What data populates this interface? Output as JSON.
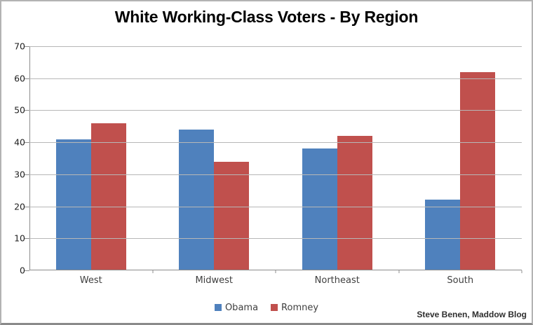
{
  "header": {
    "title": "White Working-Class Voters - By Region"
  },
  "chart_data": {
    "type": "bar",
    "title": "White Working-Class Voters - By Region",
    "categories": [
      "West",
      "Midwest",
      "Northeast",
      "South"
    ],
    "series": [
      {
        "name": "Obama",
        "color": "#4F81BD",
        "values": [
          41,
          44,
          38,
          22
        ]
      },
      {
        "name": "Romney",
        "color": "#C0504D",
        "values": [
          46,
          34,
          42,
          62
        ]
      }
    ],
    "xlabel": "",
    "ylabel": "",
    "ylim": [
      0,
      70
    ],
    "ytick_step": 10,
    "grid": "horizontal",
    "legend_position": "bottom"
  },
  "footer": {
    "attribution": "Steve Benen, Maddow Blog"
  },
  "colors": {
    "obama_blue": "#4F81BD",
    "romney_red": "#C0504D",
    "gridline": "#b7b7b7",
    "axis": "#8c8c8c"
  }
}
